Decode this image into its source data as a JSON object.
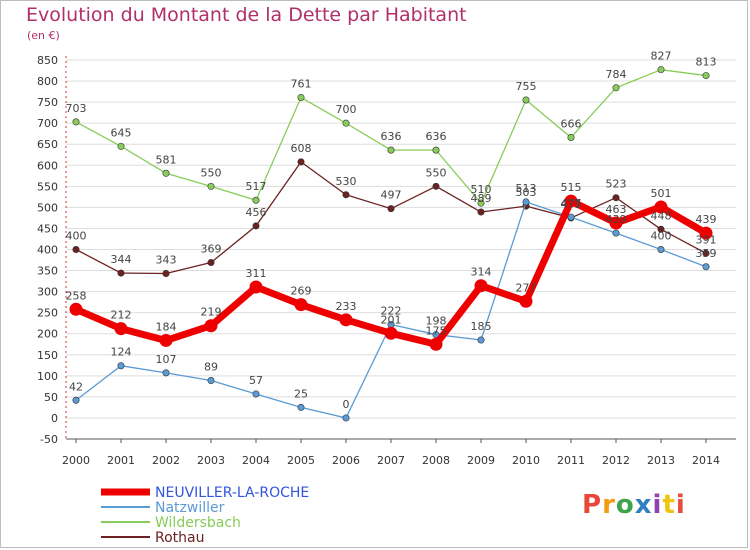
{
  "title": "Evolution du Montant de la Dette par Habitant",
  "subtitle": "(en €)",
  "logo": {
    "text": "Proxiti",
    "colors": [
      "#e8473a",
      "#f39c12",
      "#3fa34d",
      "#2f80c0",
      "#8e44ad",
      "#f1c40f",
      "#e74c3c"
    ]
  },
  "chart_data": {
    "type": "line",
    "title": "Evolution du Montant de la Dette par Habitant",
    "ylabel": "(en €)",
    "xlabel": "",
    "x": [
      2000,
      2001,
      2002,
      2003,
      2004,
      2005,
      2006,
      2007,
      2008,
      2009,
      2010,
      2011,
      2012,
      2013,
      2014
    ],
    "ylim": [
      -50,
      850
    ],
    "yticks": [
      -50,
      0,
      50,
      100,
      150,
      200,
      250,
      300,
      350,
      400,
      450,
      500,
      550,
      600,
      650,
      700,
      750,
      800,
      850
    ],
    "grid": "horizontal",
    "legend_position": "bottom-left",
    "series": [
      {
        "name": "Wildersbach",
        "color": "#88cc5a",
        "values": [
          703,
          645,
          581,
          550,
          517,
          761,
          700,
          636,
          636,
          510,
          755,
          666,
          784,
          827,
          813
        ]
      },
      {
        "name": "Rothau",
        "color": "#6b2222",
        "values": [
          400,
          344,
          343,
          369,
          456,
          608,
          530,
          497,
          550,
          489,
          503,
          475,
          523,
          448,
          391
        ]
      },
      {
        "name": "Natzwiller",
        "color": "#5b9bd5",
        "values": [
          42,
          124,
          107,
          89,
          57,
          25,
          0,
          222,
          198,
          185,
          513,
          477,
          439,
          400,
          359
        ]
      },
      {
        "name": "NEUVILLER-LA-ROCHE",
        "color": "#ee0000",
        "values": [
          258,
          212,
          184,
          219,
          311,
          269,
          233,
          201,
          175,
          314,
          277,
          515,
          463,
          501,
          439
        ]
      }
    ],
    "legend_order": [
      "NEUVILLER-LA-ROCHE",
      "Natzwiller",
      "Wildersbach",
      "Rothau"
    ]
  }
}
